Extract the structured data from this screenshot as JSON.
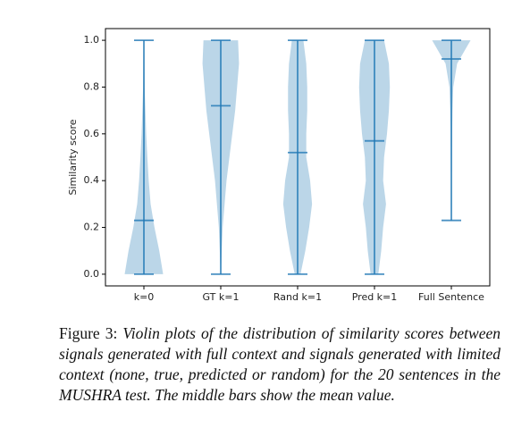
{
  "chart_data": {
    "type": "violin",
    "ylabel": "Similarity score",
    "categories": [
      "k=0",
      "GT k=1",
      "Rand k=1",
      "Pred k=1",
      "Full Sentence"
    ],
    "color": "#1f77b4",
    "ylim": [
      -0.05,
      1.05
    ],
    "yticks": [
      {
        "value": 0,
        "label": "0.0"
      },
      {
        "value": 0.2,
        "label": "0.2"
      },
      {
        "value": 0.4,
        "label": "0.4"
      },
      {
        "value": 0.6,
        "label": "0.6"
      },
      {
        "value": 0.8,
        "label": "0.8"
      },
      {
        "value": 1,
        "label": "1.0"
      }
    ],
    "density_y": [
      0,
      0.1,
      0.2,
      0.3,
      0.4,
      0.5,
      0.6,
      0.7,
      0.8,
      0.9,
      1
    ],
    "min": [
      0,
      0,
      0,
      0,
      0.23
    ],
    "max": [
      1,
      1,
      1,
      1,
      1
    ],
    "mean": [
      0.23,
      0.72,
      0.52,
      0.57,
      0.92
    ],
    "density": [
      [
        1.0,
        0.8,
        0.55,
        0.35,
        0.25,
        0.18,
        0.12,
        0.08,
        0.04,
        0.02,
        0
      ],
      [
        0,
        0.05,
        0.1,
        0.2,
        0.3,
        0.45,
        0.6,
        0.75,
        0.85,
        0.95,
        0.9
      ],
      [
        0.15,
        0.4,
        0.6,
        0.75,
        0.65,
        0.45,
        0.45,
        0.5,
        0.5,
        0.45,
        0.3
      ],
      [
        0.2,
        0.35,
        0.45,
        0.6,
        0.45,
        0.5,
        0.65,
        0.75,
        0.8,
        0.75,
        0.5
      ],
      [
        null,
        null,
        null,
        0.02,
        0.02,
        0.03,
        0.04,
        0.06,
        0.1,
        0.3,
        1.0
      ]
    ]
  },
  "caption": {
    "label": "Figure 3:",
    "text": "Violin plots of the distribution of similarity scores between signals generated with full context and signals generated with limited context (none, true, predicted or random) for the 20 sentences in the MUSHRA test.  The middle bars show the mean value."
  }
}
